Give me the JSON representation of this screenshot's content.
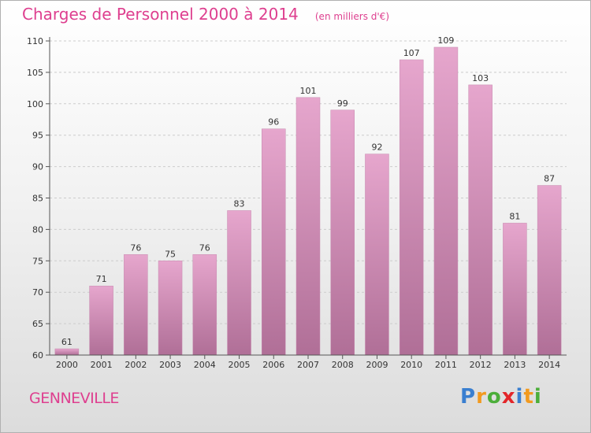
{
  "title": "Charges de Personnel 2000 à 2014",
  "subtitle": "(en milliers d'€)",
  "commune": "GENNEVILLE",
  "logo": {
    "letters": [
      "P",
      "r",
      "o",
      "x",
      "i",
      "t",
      "i"
    ],
    "colors": [
      "#3a7fd0",
      "#f29a1f",
      "#4cae3a",
      "#e3262a",
      "#3a7fd0",
      "#f29a1f",
      "#4cae3a"
    ]
  },
  "colors": {
    "title": "#de3f8f",
    "bar_top": "#e6a6cd",
    "bar_bottom": "#b06f97",
    "axis": "#555555",
    "grid": "#cccccc"
  },
  "chart_data": {
    "type": "bar",
    "categories": [
      "2000",
      "2001",
      "2002",
      "2003",
      "2004",
      "2005",
      "2006",
      "2007",
      "2008",
      "2009",
      "2010",
      "2011",
      "2012",
      "2013",
      "2014"
    ],
    "values": [
      61,
      71,
      76,
      75,
      76,
      83,
      96,
      101,
      99,
      92,
      107,
      109,
      103,
      81,
      87
    ],
    "ylim": [
      60,
      110
    ],
    "yticks": [
      60,
      65,
      70,
      75,
      80,
      85,
      90,
      95,
      100,
      105,
      110
    ],
    "grid": "horizontal",
    "data_labels": true
  }
}
